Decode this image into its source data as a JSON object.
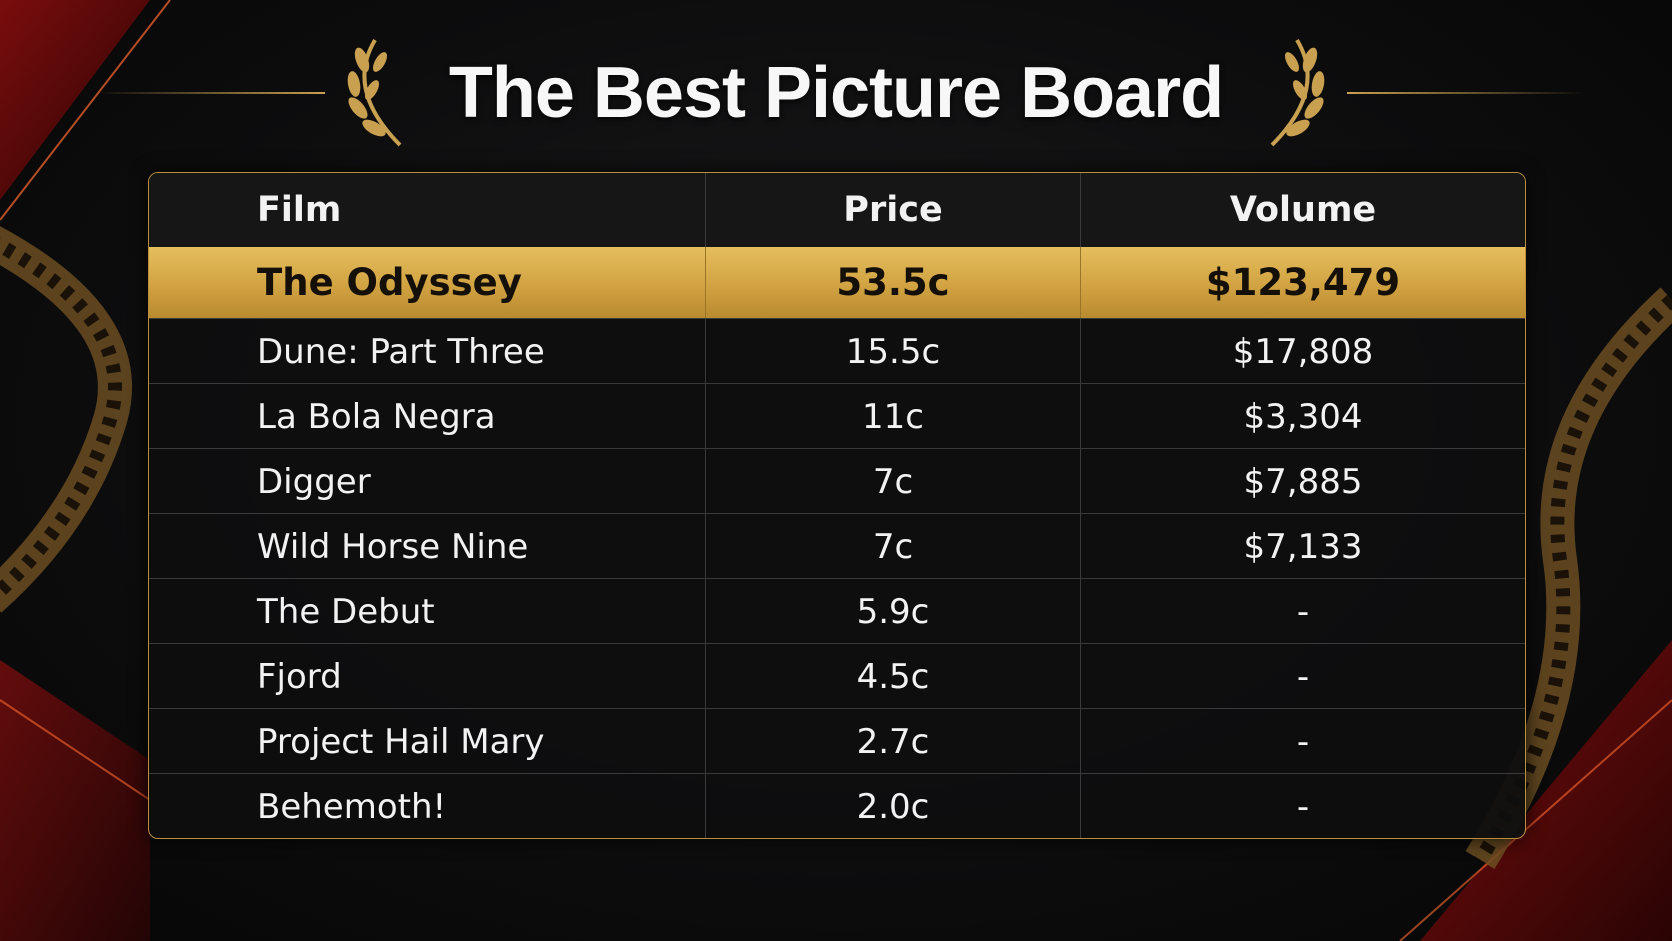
{
  "header": {
    "title": "The Best Picture Board"
  },
  "table": {
    "columns": [
      "Film",
      "Price",
      "Volume"
    ],
    "rows": [
      [
        "The Odyssey",
        "53.5c",
        "$123,479"
      ],
      [
        "Dune: Part Three",
        "15.5c",
        "$17,808"
      ],
      [
        "La Bola Negra",
        "11c",
        "$3,304"
      ],
      [
        "Digger",
        "7c",
        "$7,885"
      ],
      [
        "Wild Horse Nine",
        "7c",
        "$7,133"
      ],
      [
        "The Debut",
        "5.9c",
        "-"
      ],
      [
        "Fjord",
        "4.5c",
        "-"
      ],
      [
        "Project Hail Mary",
        "2.7c",
        "-"
      ],
      [
        "Behemoth!",
        "2.0c",
        "-"
      ]
    ]
  }
}
